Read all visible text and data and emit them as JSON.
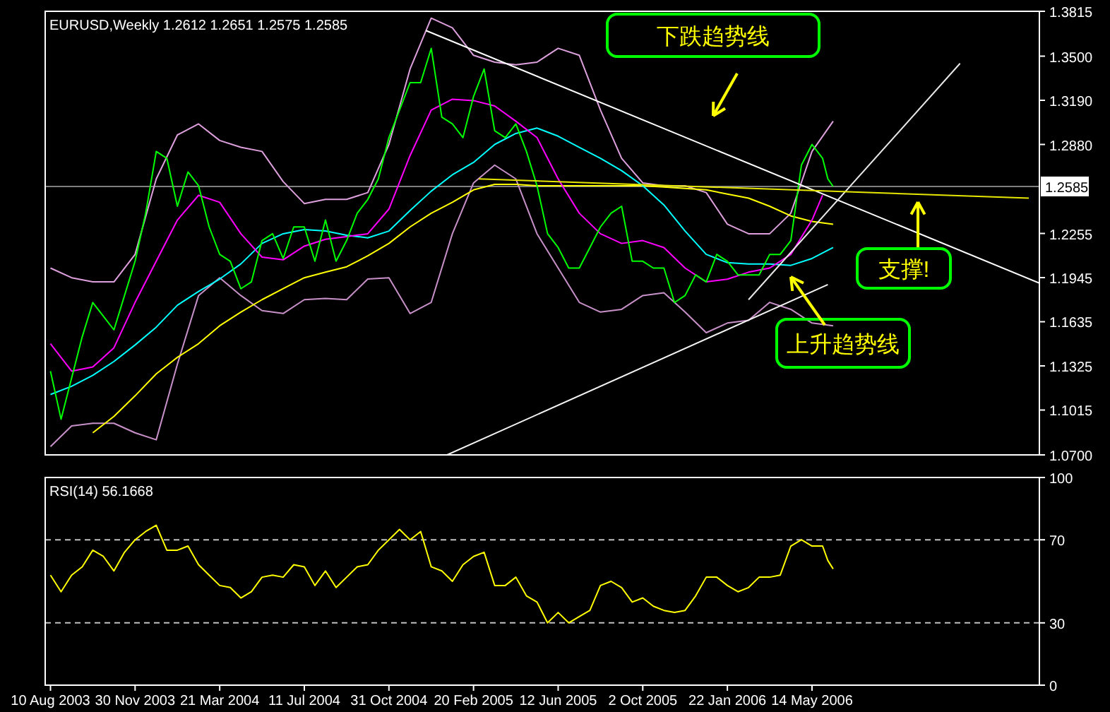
{
  "chart_data": [
    {
      "type": "line",
      "title": "EURUSD,Weekly  1.2612 1.2651 1.2575 1.2585",
      "tick_labels": "y",
      "xlim": [
        "2003-08-03",
        "2007-03-11"
      ],
      "ylim": [
        1.07,
        1.3815
      ],
      "yticks": [
        {
          "value": 1.07,
          "label": "1.0700"
        },
        {
          "value": 1.1015,
          "label": "1.1015"
        },
        {
          "value": 1.1325,
          "label": "1.1325"
        },
        {
          "value": 1.1635,
          "label": "1.1635"
        },
        {
          "value": 1.1945,
          "label": "1.1945"
        },
        {
          "value": 1.2255,
          "label": "1.2255"
        },
        {
          "value": 1.288,
          "label": "1.2880"
        },
        {
          "value": 1.319,
          "label": "1.3190"
        },
        {
          "value": 1.35,
          "label": "1.3500"
        },
        1.3815
      ],
      "ref_lines": [
        {
          "axis": "y",
          "value": 1.2585,
          "label": "1.2585",
          "color": "#808080"
        }
      ],
      "annotations": [
        "下跌趋势线",
        "上升趋势线",
        "支撑!"
      ],
      "x": [
        "2003-08-10",
        "2003-08-24",
        "2003-09-07",
        "2003-09-21",
        "2003-10-05",
        "2003-10-19",
        "2003-11-02",
        "2003-11-16",
        "2003-11-30",
        "2003-12-14",
        "2003-12-28",
        "2004-01-11",
        "2004-01-25",
        "2004-02-08",
        "2004-02-22",
        "2004-03-07",
        "2004-03-21",
        "2004-04-04",
        "2004-04-18",
        "2004-05-02",
        "2004-05-16",
        "2004-05-30",
        "2004-06-13",
        "2004-06-27",
        "2004-07-11",
        "2004-07-25",
        "2004-08-08",
        "2004-08-22",
        "2004-09-05",
        "2004-09-19",
        "2004-10-03",
        "2004-10-17",
        "2004-10-31",
        "2004-11-14",
        "2004-11-28",
        "2004-12-12",
        "2004-12-26",
        "2005-01-09",
        "2005-01-23",
        "2005-02-06",
        "2005-02-20",
        "2005-03-06",
        "2005-03-20",
        "2005-04-03",
        "2005-04-17",
        "2005-05-01",
        "2005-05-15",
        "2005-05-29",
        "2005-06-12",
        "2005-06-26",
        "2005-07-10",
        "2005-07-24",
        "2005-08-07",
        "2005-08-21",
        "2005-09-04",
        "2005-09-18",
        "2005-10-02",
        "2005-10-16",
        "2005-10-30",
        "2005-11-13",
        "2005-11-27",
        "2005-12-11",
        "2005-12-25",
        "2006-01-08",
        "2006-01-22",
        "2006-02-05",
        "2006-02-19",
        "2006-03-05",
        "2006-03-19",
        "2006-04-02",
        "2006-04-16",
        "2006-04-30",
        "2006-05-14",
        "2006-05-28",
        "2006-06-04",
        "2006-06-11"
      ],
      "series": [
        {
          "color": "#dda0dd",
          "x": [
            "2003-08-10",
            "2003-09-07",
            "2003-10-05",
            "2003-11-02",
            "2003-11-30",
            "2003-12-28",
            "2004-01-25",
            "2004-02-22",
            "2004-03-21",
            "2004-04-18",
            "2004-05-16",
            "2004-06-13",
            "2004-07-11",
            "2004-08-08",
            "2004-09-05",
            "2004-10-03",
            "2004-10-31",
            "2004-11-28",
            "2004-12-26",
            "2005-01-23",
            "2005-02-20",
            "2005-03-20",
            "2005-04-17",
            "2005-05-15",
            "2005-06-12",
            "2005-07-10",
            "2005-08-07",
            "2005-09-04",
            "2005-10-02",
            "2005-10-30",
            "2005-11-27",
            "2005-12-25",
            "2006-01-22",
            "2006-02-19",
            "2006-03-19",
            "2006-04-16",
            "2006-05-14",
            "2006-06-11"
          ],
          "values": [
            1.2012,
            1.1944,
            1.1915,
            1.1915,
            1.2108,
            1.2638,
            1.2947,
            1.3024,
            1.2908,
            1.286,
            1.2831,
            1.2619,
            1.2465,
            1.2494,
            1.2494,
            1.2542,
            1.288,
            1.341,
            1.3767,
            1.3699,
            1.3506,
            1.3458,
            1.3439,
            1.3458,
            1.3555,
            1.3506,
            1.3121,
            1.2783,
            1.261,
            1.259,
            1.259,
            1.2542,
            1.232,
            1.2253,
            1.2253,
            1.2397,
            1.2831,
            1.3043
          ]
        },
        {
          "color": "#c890c8",
          "x": [
            "2003-08-10",
            "2003-09-07",
            "2003-10-05",
            "2003-11-02",
            "2003-11-30",
            "2003-12-28",
            "2004-01-25",
            "2004-02-22",
            "2004-03-21",
            "2004-04-18",
            "2004-05-16",
            "2004-06-13",
            "2004-07-11",
            "2004-08-08",
            "2004-09-05",
            "2004-10-03",
            "2004-10-31",
            "2004-11-28",
            "2004-12-26",
            "2005-01-23",
            "2005-02-20",
            "2005-03-20",
            "2005-04-17",
            "2005-05-15",
            "2005-06-12",
            "2005-07-10",
            "2005-08-07",
            "2005-09-04",
            "2005-10-02",
            "2005-10-30",
            "2005-11-27",
            "2005-12-25",
            "2006-01-22",
            "2006-02-19",
            "2006-03-19",
            "2006-04-16",
            "2006-05-14",
            "2006-06-11"
          ],
          "values": [
            1.0758,
            1.0903,
            1.0922,
            1.0922,
            1.0855,
            1.0806,
            1.1337,
            1.1819,
            1.1944,
            1.1819,
            1.1713,
            1.1693,
            1.179,
            1.1799,
            1.179,
            1.1935,
            1.1944,
            1.1693,
            1.1771,
            1.2253,
            1.261,
            1.2735,
            1.2638,
            1.2253,
            1.2012,
            1.1771,
            1.1703,
            1.1722,
            1.1819,
            1.1838,
            1.1703,
            1.1558,
            1.1626,
            1.1645,
            1.1771,
            1.1722,
            1.1626,
            1.1607
          ]
        },
        {
          "color": "#ffff00",
          "x": [
            "2003-10-05",
            "2003-11-02",
            "2003-11-30",
            "2003-12-28",
            "2004-01-25",
            "2004-02-22",
            "2004-03-21",
            "2004-04-18",
            "2004-05-16",
            "2004-06-13",
            "2004-07-11",
            "2004-08-08",
            "2004-09-05",
            "2004-10-03",
            "2004-10-31",
            "2004-11-28",
            "2004-12-26",
            "2005-01-23",
            "2005-02-20",
            "2005-03-20",
            "2005-04-17",
            "2005-05-15",
            "2005-06-12",
            "2005-07-10",
            "2005-08-07",
            "2005-09-04",
            "2005-10-02",
            "2005-10-30",
            "2005-11-27",
            "2005-12-25",
            "2006-01-22",
            "2006-02-19",
            "2006-03-19",
            "2006-04-16",
            "2006-05-14",
            "2006-06-11"
          ],
          "values": [
            1.0855,
            1.097,
            1.1115,
            1.1269,
            1.1385,
            1.1481,
            1.1607,
            1.1703,
            1.179,
            1.1867,
            1.1944,
            1.1983,
            1.2021,
            1.2098,
            1.2185,
            1.2301,
            1.2397,
            1.2474,
            1.2561,
            1.26,
            1.26,
            1.259,
            1.259,
            1.259,
            1.259,
            1.259,
            1.259,
            1.2581,
            1.2571,
            1.2561,
            1.2532,
            1.2503,
            1.2446,
            1.2378,
            1.2339,
            1.232
          ]
        },
        {
          "color": "#00ffff",
          "x": [
            "2003-08-10",
            "2003-09-07",
            "2003-10-05",
            "2003-11-02",
            "2003-11-30",
            "2003-12-28",
            "2004-01-25",
            "2004-02-22",
            "2004-03-21",
            "2004-04-18",
            "2004-05-16",
            "2004-06-13",
            "2004-07-11",
            "2004-08-08",
            "2004-09-05",
            "2004-10-03",
            "2004-10-31",
            "2004-11-28",
            "2004-12-26",
            "2005-01-23",
            "2005-02-20",
            "2005-03-20",
            "2005-04-17",
            "2005-05-15",
            "2005-06-12",
            "2005-07-10",
            "2005-08-07",
            "2005-09-04",
            "2005-10-02",
            "2005-10-30",
            "2005-11-27",
            "2005-12-25",
            "2006-01-22",
            "2006-02-19",
            "2006-03-19",
            "2006-04-16",
            "2006-05-14",
            "2006-06-11"
          ],
          "values": [
            1.1124,
            1.1182,
            1.1259,
            1.1356,
            1.1472,
            1.1597,
            1.1751,
            1.1848,
            1.1935,
            1.2041,
            1.2185,
            1.2253,
            1.2282,
            1.2272,
            1.2243,
            1.2224,
            1.2272,
            1.2416,
            1.2552,
            1.2667,
            1.2754,
            1.288,
            1.2957,
            1.2995,
            1.2938,
            1.286,
            1.2783,
            1.2696,
            1.259,
            1.2455,
            1.2272,
            1.2108,
            1.205,
            1.2041,
            1.2041,
            1.2031,
            1.2079,
            1.2156
          ]
        },
        {
          "color": "#ff00ff",
          "x": [
            "2003-08-10",
            "2003-09-07",
            "2003-10-05",
            "2003-11-02",
            "2003-11-30",
            "2003-12-28",
            "2004-01-25",
            "2004-02-22",
            "2004-03-21",
            "2004-04-18",
            "2004-05-16",
            "2004-06-13",
            "2004-07-11",
            "2004-08-08",
            "2004-09-05",
            "2004-10-03",
            "2004-10-31",
            "2004-11-28",
            "2004-12-26",
            "2005-01-23",
            "2005-02-20",
            "2005-03-20",
            "2005-04-17",
            "2005-05-15",
            "2005-06-12",
            "2005-07-10",
            "2005-08-07",
            "2005-09-04",
            "2005-10-02",
            "2005-10-30",
            "2005-11-27",
            "2005-12-25",
            "2006-01-22",
            "2006-02-19",
            "2006-03-19",
            "2006-04-16",
            "2006-05-14",
            "2006-05-28"
          ],
          "values": [
            1.1481,
            1.1288,
            1.1317,
            1.1452,
            1.1771,
            1.206,
            1.2349,
            1.2523,
            1.2474,
            1.2253,
            1.2089,
            1.207,
            1.2166,
            1.2214,
            1.2233,
            1.2253,
            1.2426,
            1.2802,
            1.3121,
            1.3198,
            1.3188,
            1.315,
            1.3043,
            1.2928,
            1.2638,
            1.2397,
            1.2253,
            1.2185,
            1.2205,
            1.2156,
            1.2012,
            1.1915,
            1.1934,
            1.1983,
            1.2012,
            1.2108,
            1.2349,
            1.2523
          ]
        },
        {
          "color": "#00ff00",
          "values": [
            1.1288,
            1.0951,
            1.124,
            1.1529,
            1.177,
            1.1674,
            1.1578,
            1.1819,
            1.206,
            1.2397,
            1.2831,
            1.2783,
            1.2446,
            1.2687,
            1.259,
            1.2301,
            1.2108,
            1.206,
            1.1867,
            1.1915,
            1.2205,
            1.2253,
            1.2079,
            1.2301,
            1.2301,
            1.206,
            1.2349,
            1.206,
            1.2205,
            1.2397,
            1.2494,
            1.2638,
            1.2928,
            1.3121,
            1.3314,
            1.3314,
            1.3555,
            1.3072,
            1.3024,
            1.2928,
            1.3217,
            1.341,
            1.2976,
            1.2928,
            1.3024,
            1.2831,
            1.259,
            1.2253,
            1.2156,
            1.2012,
            1.2012,
            1.2156,
            1.2301,
            1.2397,
            1.2446,
            1.206,
            1.206,
            1.2012,
            1.2012,
            1.177,
            1.1819,
            1.1964,
            1.1915,
            1.2108,
            1.206,
            1.1964,
            1.1964,
            1.1964,
            1.2108,
            1.2108,
            1.2205,
            1.2735,
            1.288,
            1.2783,
            1.2638,
            1.2585
          ]
        },
        {
          "color": "#ffffff",
          "x": [
            "2004-12-19",
            "2007-03-11"
          ],
          "values": [
            1.368,
            1.1906
          ]
        },
        {
          "color": "#f4f4f4",
          "x": [
            "2005-01-16",
            "2006-06-04"
          ],
          "values": [
            1.07,
            1.1896
          ]
        },
        {
          "color": "#e8e8e8",
          "x": [
            "2006-02-19",
            "2006-11-26"
          ],
          "values": [
            1.179,
            1.3449
          ]
        },
        {
          "color": "#e6e600",
          "x": [
            "2005-02-27",
            "2007-02-25"
          ],
          "values": [
            1.2638,
            1.2503
          ]
        }
      ]
    },
    {
      "type": "line",
      "title": "RSI(14) 56.1668",
      "xlim": [
        "2003-08-03",
        "2007-03-11"
      ],
      "xticks": [
        {
          "value": "2003-08-10",
          "label": "10 Aug 2003"
        },
        {
          "value": "2003-11-30",
          "label": "30 Nov 2003"
        },
        {
          "value": "2004-03-21",
          "label": "21 Mar 2004"
        },
        {
          "value": "2004-07-11",
          "label": "11 Jul 2004"
        },
        {
          "value": "2004-10-31",
          "label": "31 Oct 2004"
        },
        {
          "value": "2005-02-20",
          "label": "20 Feb 2005"
        },
        {
          "value": "2005-06-12",
          "label": "12 Jun 2005"
        },
        {
          "value": "2005-10-02",
          "label": "2 Oct 2005"
        },
        {
          "value": "2006-01-22",
          "label": "22 Jan 2006"
        },
        {
          "value": "2006-05-14",
          "label": "14 May 2006"
        }
      ],
      "ylim": [
        0,
        100
      ],
      "yticks": [
        0,
        30,
        70,
        100
      ],
      "ref_lines": [
        {
          "axis": "y",
          "value": 70,
          "color": "#c0c0c0",
          "line_style": "dashed"
        },
        {
          "axis": "y",
          "value": 30,
          "color": "#c0c0c0",
          "line_style": "dashed"
        }
      ],
      "x": [
        "2003-08-10",
        "2003-08-24",
        "2003-09-07",
        "2003-09-21",
        "2003-10-05",
        "2003-10-19",
        "2003-11-02",
        "2003-11-16",
        "2003-11-30",
        "2003-12-14",
        "2003-12-28",
        "2004-01-11",
        "2004-01-25",
        "2004-02-08",
        "2004-02-22",
        "2004-03-07",
        "2004-03-21",
        "2004-04-04",
        "2004-04-18",
        "2004-05-02",
        "2004-05-16",
        "2004-05-30",
        "2004-06-13",
        "2004-06-27",
        "2004-07-11",
        "2004-07-25",
        "2004-08-08",
        "2004-08-22",
        "2004-09-05",
        "2004-09-19",
        "2004-10-03",
        "2004-10-17",
        "2004-10-31",
        "2004-11-14",
        "2004-11-28",
        "2004-12-12",
        "2004-12-26",
        "2005-01-09",
        "2005-01-23",
        "2005-02-06",
        "2005-02-20",
        "2005-03-06",
        "2005-03-20",
        "2005-04-03",
        "2005-04-17",
        "2005-05-01",
        "2005-05-15",
        "2005-05-29",
        "2005-06-12",
        "2005-06-26",
        "2005-07-10",
        "2005-07-24",
        "2005-08-07",
        "2005-08-21",
        "2005-09-04",
        "2005-09-18",
        "2005-10-02",
        "2005-10-16",
        "2005-10-30",
        "2005-11-13",
        "2005-11-27",
        "2005-12-11",
        "2005-12-25",
        "2006-01-08",
        "2006-01-22",
        "2006-02-05",
        "2006-02-19",
        "2006-03-05",
        "2006-03-19",
        "2006-04-02",
        "2006-04-16",
        "2006-04-30",
        "2006-05-14",
        "2006-05-28",
        "2006-06-04",
        "2006-06-11"
      ],
      "series": [
        {
          "color": "#ffff00",
          "values": [
            53,
            45,
            53,
            57,
            65,
            62,
            55,
            64,
            70,
            74,
            77,
            65,
            65,
            67,
            58,
            53,
            48,
            47,
            42,
            45,
            52,
            53,
            52,
            58,
            57,
            48,
            55,
            47,
            52,
            57,
            58,
            65,
            70,
            75,
            70,
            74,
            57,
            55,
            50,
            58,
            62,
            64,
            48,
            48,
            52,
            43,
            40,
            30,
            35,
            30,
            33,
            36,
            48,
            50,
            47,
            40,
            42,
            38,
            36,
            35,
            36,
            43,
            52,
            52,
            48,
            45,
            47,
            52,
            52,
            53,
            67,
            70,
            67,
            67,
            60,
            56
          ]
        }
      ]
    }
  ]
}
